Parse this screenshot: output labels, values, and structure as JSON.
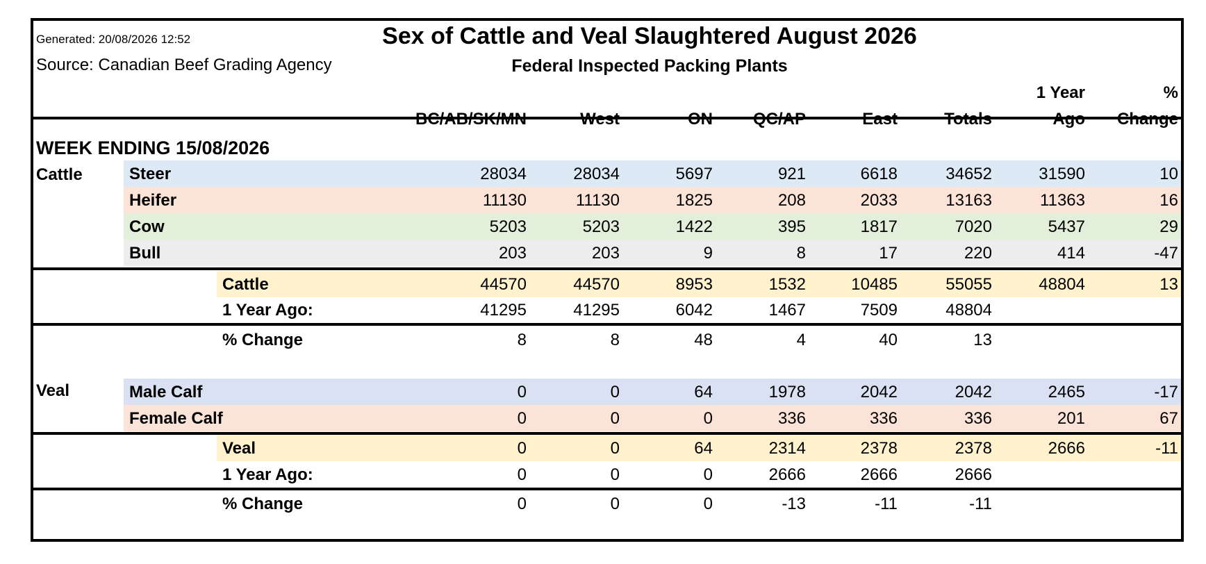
{
  "header": {
    "generated": "Generated: 20/08/2026 12:52",
    "source": "Source: Canadian Beef Grading Agency",
    "title": "Sex of Cattle and Veal Slaughtered August 2026",
    "subtitle": "Federal Inspected Packing Plants"
  },
  "columns": [
    {
      "line1": "",
      "line2": "BC/AB/SK/MN"
    },
    {
      "line1": "",
      "line2": "West"
    },
    {
      "line1": "",
      "line2": "ON"
    },
    {
      "line1": "",
      "line2": "QC/AP"
    },
    {
      "line1": "",
      "line2": "East"
    },
    {
      "line1": "",
      "line2": "Totals"
    },
    {
      "line1": "1 Year",
      "line2": "Ago"
    },
    {
      "line1": "%",
      "line2": "Change"
    }
  ],
  "week_ending": "WEEK ENDING 15/08/2026",
  "cattle": {
    "group_label": "Cattle",
    "rows": [
      {
        "label": "Steer",
        "color": "#ddeaf6",
        "values": [
          "28034",
          "28034",
          "5697",
          "921",
          "6618",
          "34652",
          "31590",
          "10"
        ]
      },
      {
        "label": "Heifer",
        "color": "#fbe3d7",
        "values": [
          "11130",
          "11130",
          "1825",
          "208",
          "2033",
          "13163",
          "11363",
          "16"
        ]
      },
      {
        "label": "Cow",
        "color": "#e2efda",
        "values": [
          "5203",
          "5203",
          "1422",
          "395",
          "1817",
          "7020",
          "5437",
          "29"
        ]
      },
      {
        "label": "Bull",
        "color": "#ededed",
        "values": [
          "203",
          "203",
          "9",
          "8",
          "17",
          "220",
          "414",
          "-47"
        ]
      }
    ],
    "total": {
      "label": "Cattle",
      "color": "#fff2cc",
      "values": [
        "44570",
        "44570",
        "8953",
        "1532",
        "10485",
        "55055",
        "48804",
        "13"
      ]
    },
    "year_ago": {
      "label": "1 Year Ago:",
      "values": [
        "41295",
        "41295",
        "6042",
        "1467",
        "7509",
        "48804",
        "",
        ""
      ]
    },
    "pct_change": {
      "label": "% Change",
      "values": [
        "8",
        "8",
        "48",
        "4",
        "40",
        "13",
        "",
        ""
      ]
    }
  },
  "veal": {
    "group_label": "Veal",
    "rows": [
      {
        "label": "Male Calf",
        "color": "#d9e1f2",
        "values": [
          "0",
          "0",
          "64",
          "1978",
          "2042",
          "2042",
          "2465",
          "-17"
        ]
      },
      {
        "label": "Female Calf",
        "color": "#fbe3d7",
        "values": [
          "0",
          "0",
          "0",
          "336",
          "336",
          "336",
          "201",
          "67"
        ]
      }
    ],
    "total": {
      "label": "Veal",
      "color": "#fff2cc",
      "values": [
        "0",
        "0",
        "64",
        "2314",
        "2378",
        "2378",
        "2666",
        "-11"
      ]
    },
    "year_ago": {
      "label": "1 Year Ago:",
      "values": [
        "0",
        "0",
        "0",
        "2666",
        "2666",
        "2666",
        "",
        ""
      ]
    },
    "pct_change": {
      "label": "% Change",
      "values": [
        "0",
        "0",
        "0",
        "-13",
        "-11",
        "-11",
        "",
        ""
      ]
    }
  }
}
